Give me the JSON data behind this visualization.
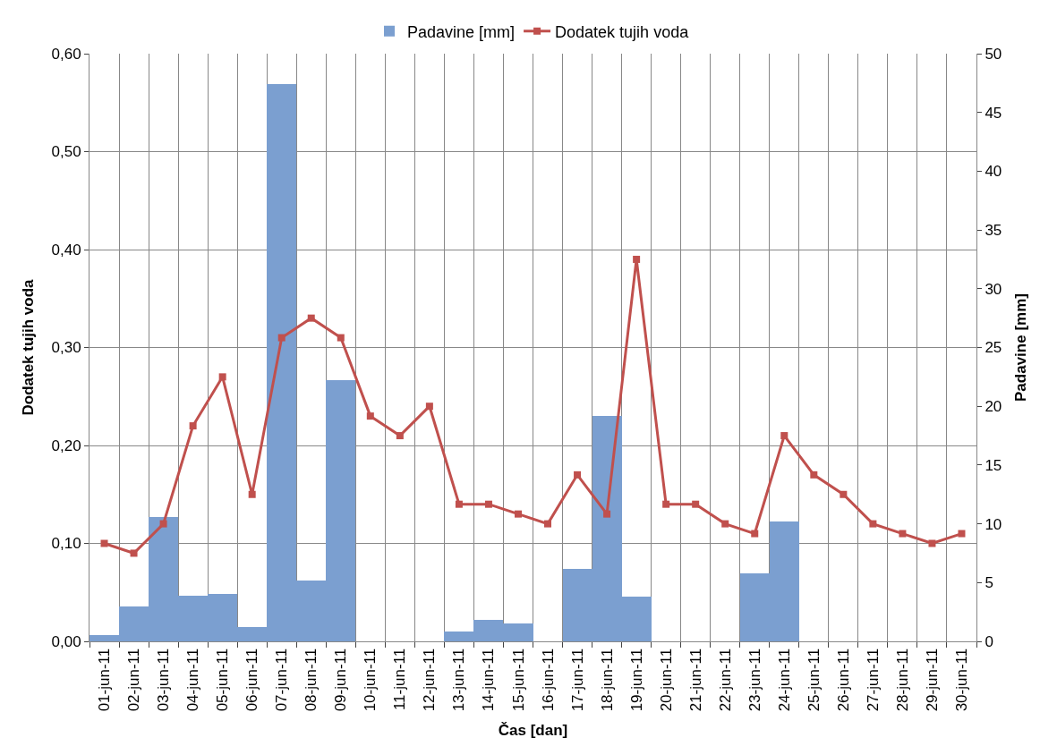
{
  "chart_data": {
    "type": "bar",
    "xlabel": "Čas [dan]",
    "ylabel": "Dodatek tujih voda",
    "y2label": "Padavine [mm]",
    "categories": [
      "01-jun-11",
      "02-jun-11",
      "03-jun-11",
      "04-jun-11",
      "05-jun-11",
      "06-jun-11",
      "07-jun-11",
      "08-jun-11",
      "09-jun-11",
      "10-jun-11",
      "11-jun-11",
      "12-jun-11",
      "13-jun-11",
      "14-jun-11",
      "15-jun-11",
      "16-jun-11",
      "17-jun-11",
      "18-jun-11",
      "19-jun-11",
      "20-jun-11",
      "21-jun-11",
      "22-jun-11",
      "23-jun-11",
      "24-jun-11",
      "25-jun-11",
      "26-jun-11",
      "27-jun-11",
      "28-jun-11",
      "29-jun-11",
      "30-jun-11"
    ],
    "series": [
      {
        "name": "Padavine [mm]",
        "axis": "y2",
        "color": "#7b9fd0",
        "values": [
          0.5,
          3.0,
          10.6,
          3.9,
          4.0,
          1.2,
          47.4,
          5.2,
          22.2,
          0,
          0,
          0,
          0.8,
          1.8,
          1.5,
          0,
          6.2,
          19.2,
          3.8,
          0,
          0,
          0,
          5.8,
          10.2,
          0,
          0,
          0,
          0,
          0,
          0
        ]
      },
      {
        "name": "Dodatek tujih voda",
        "type": "line",
        "color": "#c0504d",
        "marker": "square",
        "line_style": "solid",
        "values": [
          0.1,
          0.09,
          0.12,
          0.22,
          0.27,
          0.15,
          0.31,
          0.33,
          0.31,
          0.23,
          0.21,
          0.24,
          0.14,
          0.14,
          0.13,
          0.12,
          0.17,
          0.13,
          0.39,
          0.14,
          0.14,
          0.12,
          0.11,
          0.21,
          0.17,
          0.15,
          0.12,
          0.11,
          0.1,
          0.11
        ]
      }
    ],
    "ylim": [
      0,
      0.6
    ],
    "yticks": [
      {
        "value": 0,
        "label": "0,00"
      },
      {
        "value": 0.1,
        "label": "0,10"
      },
      {
        "value": 0.2,
        "label": "0,20"
      },
      {
        "value": 0.3,
        "label": "0,30"
      },
      {
        "value": 0.4,
        "label": "0,40"
      },
      {
        "value": 0.5,
        "label": "0,50"
      },
      {
        "value": 0.6,
        "label": "0,60"
      }
    ],
    "y2lim": [
      0,
      50
    ],
    "y2ticks": [
      0,
      5,
      10,
      15,
      20,
      25,
      30,
      35,
      40,
      45,
      50
    ],
    "grid": true,
    "legend": "top"
  }
}
